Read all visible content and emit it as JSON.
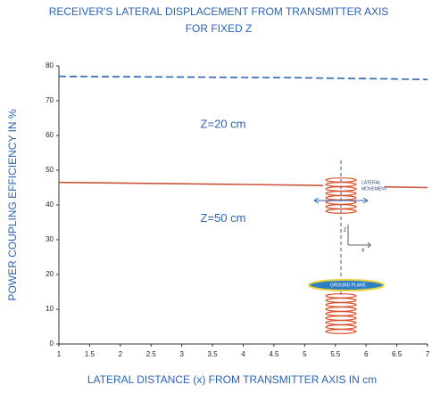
{
  "chart_data": {
    "type": "line",
    "title": [
      "RECEIVER'S LATERAL DISPLACEMENT FROM TRANSMITTER AXIS",
      "FOR FIXED Z"
    ],
    "x_label": "LATERAL DISTANCE (x) FROM TRANSMITTER AXIS IN cm",
    "y_label": "POWER COUPLING EFFICIENCY IN %",
    "x": [
      1,
      2,
      3,
      4,
      5,
      5.3,
      5.8,
      6.3,
      7
    ],
    "series": [
      {
        "name": "Z=20 cm",
        "color": "#2b63b5",
        "dash": true,
        "values": [
          77,
          76.9,
          76.8,
          76.7,
          76.6,
          76.5,
          76.4,
          76.3,
          76.1
        ]
      },
      {
        "name": "Z=50 cm",
        "color": "#c8553a",
        "dash": false,
        "values": [
          46.5,
          46.3,
          46.1,
          45.9,
          45.7,
          45.6,
          null,
          45.2,
          45.0
        ]
      }
    ],
    "xlim": [
      1,
      7
    ],
    "ylim": [
      0,
      80
    ],
    "xticks": [
      1,
      1.5,
      2,
      2.5,
      3,
      3.5,
      4,
      4.5,
      5,
      5.5,
      6,
      6.5,
      7
    ],
    "yticks": [
      0,
      10,
      20,
      30,
      40,
      50,
      60,
      70,
      80
    ],
    "inset_labels": {
      "lateral": [
        "LATERAL",
        "MOVEMENT"
      ],
      "ground": "GROUND PLANE",
      "z": "Z",
      "x": "X"
    }
  }
}
